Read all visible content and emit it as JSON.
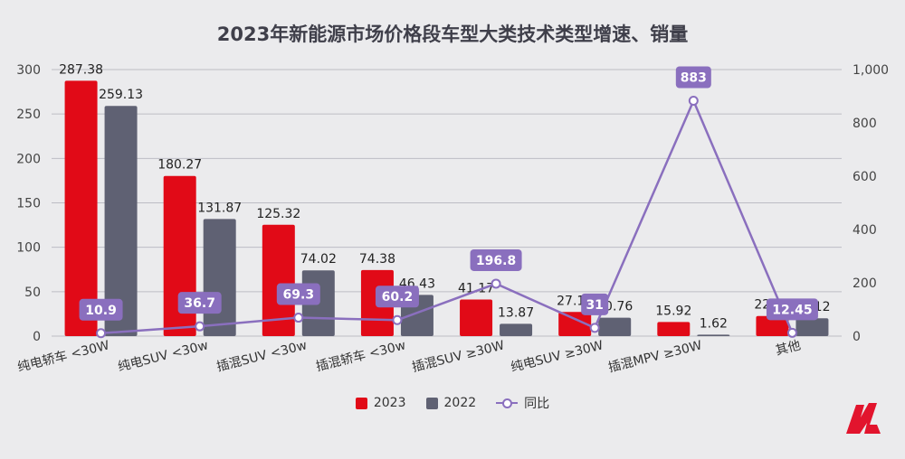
{
  "colors": {
    "series_2023": "#e10a17",
    "series_2022": "#5f6173",
    "series_yoy": "#8a6fbe",
    "logo_red": "#e2142d"
  },
  "chart_data": {
    "type": "bar",
    "title": "2023年新能源市场价格段车型大类技术类型增速、销量",
    "categories": [
      "纯电轿车 <30W",
      "纯电SUV <30w",
      "插混SUV <30w",
      "插混轿车 <30w",
      "插混SUV ≥30W",
      "纯电SUV ≥30W",
      "插混MPV ≥30W",
      "其他"
    ],
    "series": [
      {
        "name": "2023",
        "axis": "left",
        "values": [
          287.38,
          180.27,
          125.32,
          74.38,
          41.17,
          27.19,
          15.92,
          22.69
        ],
        "labels": [
          "287.38",
          "180.27",
          "125.32",
          "74.38",
          "41.17",
          "27.19",
          "15.92",
          "22.69"
        ]
      },
      {
        "name": "2022",
        "axis": "left",
        "values": [
          259.13,
          131.87,
          74.02,
          46.43,
          13.87,
          20.76,
          1.62,
          20.12
        ],
        "labels": [
          "259.13",
          "131.87",
          "74.02",
          "46.43",
          "13.87",
          "20.76",
          "1.62",
          "20.12"
        ]
      },
      {
        "name": "同比",
        "axis": "right",
        "type": "line",
        "values": [
          10.9,
          36.7,
          69.3,
          60.2,
          196.8,
          31,
          883,
          12.45
        ],
        "labels": [
          "10.9",
          "36.7",
          "69.3",
          "60.2",
          "196.8",
          "31",
          "883",
          "12.45"
        ]
      }
    ],
    "y_left": {
      "min": 0,
      "max": 300,
      "ticks": [
        "0",
        "50",
        "100",
        "150",
        "200",
        "250",
        "300"
      ]
    },
    "y_right": {
      "min": 0,
      "max": 1000,
      "ticks": [
        "0",
        "200",
        "400",
        "600",
        "800",
        "1,000"
      ]
    },
    "grid": true,
    "legend_position": "bottom"
  }
}
